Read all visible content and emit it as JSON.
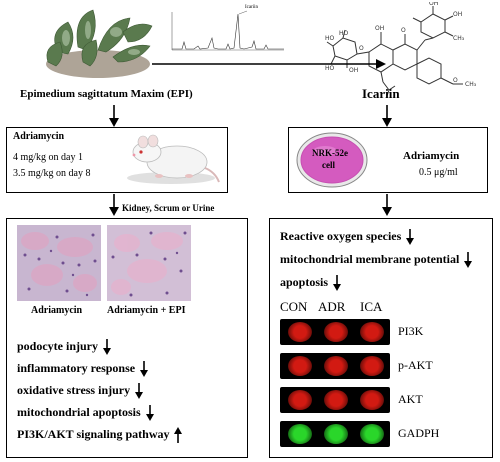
{
  "colors": {
    "line": "#000000",
    "plant_leaf": "#5a7a4e",
    "plant_leaf_light": "#a9bfa0",
    "soil": "#6b5a42",
    "dish_pink": "#d45bbf",
    "dish_rim": "#c74fb2",
    "blot_red": "#d21a12",
    "blot_green": "#2ad62a",
    "histo_bg": "#c8b6d0",
    "histo_pink": "#d9a8c6",
    "histo_purple": "#6f4e8f",
    "molecule": "#333333"
  },
  "top": {
    "epi_title": "Epimedium sagittatum Maxim (EPI)",
    "icariin_title": "Icariin",
    "hplc_peak_label": "Icariin"
  },
  "left_box": {
    "title": "Adriamycin",
    "dose1": "4 mg/kg on day 1",
    "dose2": "3.5 mg/kg on day 8"
  },
  "right_box": {
    "cell_label_1": "NRK-52e",
    "cell_label_2": "cell",
    "title": "Adriamycin",
    "dose": "0.5 μg/ml"
  },
  "left_arrow_label": "Kidney, Scrum or Urine",
  "left_panel": {
    "image_label_1": "Adriamycin",
    "image_label_2": "Adriamycin + EPI",
    "items": [
      {
        "text": "podocyte injury",
        "direction": "down"
      },
      {
        "text": "inflammatory response",
        "direction": "down"
      },
      {
        "text": "oxidative stress injury",
        "direction": "down"
      },
      {
        "text": "mitochondrial apoptosis",
        "direction": "down"
      },
      {
        "text": "PI3K/AKT signaling pathway",
        "direction": "up"
      }
    ]
  },
  "right_panel": {
    "items": [
      {
        "text": "Reactive oxygen species",
        "direction": "down"
      },
      {
        "text": "mitochondrial membrane potential",
        "direction": "down"
      },
      {
        "text": "apoptosis",
        "direction": "down"
      }
    ],
    "columns": [
      "CON",
      "ADR",
      "ICA"
    ],
    "blots": [
      {
        "label": "PI3K",
        "color": "red"
      },
      {
        "label": "p-AKT",
        "color": "red"
      },
      {
        "label": "AKT",
        "color": "red"
      },
      {
        "label": "GADPH",
        "color": "green"
      }
    ]
  }
}
